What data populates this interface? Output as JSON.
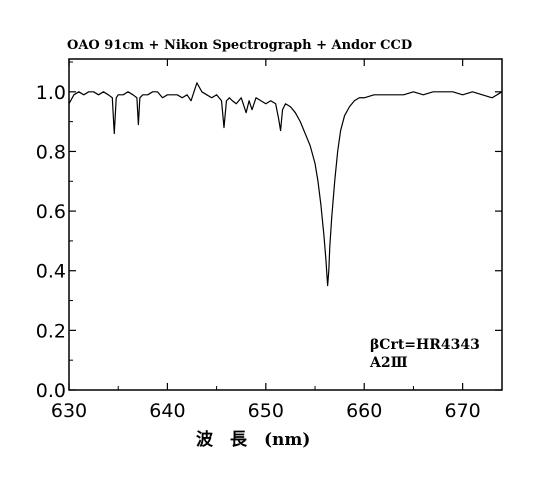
{
  "chart_data": {
    "type": "line",
    "title": "OAO 91cm + Nikon Spectrograph + Andor CCD",
    "xlabel": "波　長　(nm)",
    "ylabel": "",
    "xlim": [
      630,
      674
    ],
    "ylim": [
      0.0,
      1.1
    ],
    "xticks": [
      630,
      640,
      650,
      660,
      670
    ],
    "xtick_labels": [
      "630",
      "640",
      "650",
      "660",
      "670"
    ],
    "yticks": [
      0.0,
      0.2,
      0.4,
      0.6,
      0.8,
      1.0
    ],
    "ytick_labels": [
      "0.0",
      "0.2",
      "0.4",
      "0.6",
      "0.8",
      "1.0"
    ],
    "grid": false,
    "annotations": [
      "βCrt=HR4343",
      "A2Ⅲ"
    ],
    "series": [
      {
        "color": "#000000",
        "x": [
          630.0,
          630.5,
          631.0,
          631.5,
          632.0,
          632.5,
          633.0,
          633.5,
          634.0,
          634.4,
          634.6,
          634.8,
          635.0,
          635.5,
          636.0,
          636.5,
          636.9,
          637.05,
          637.2,
          637.5,
          638.0,
          638.5,
          639.0,
          639.5,
          640.0,
          640.5,
          641.0,
          641.5,
          642.0,
          642.4,
          642.7,
          643.0,
          643.5,
          644.0,
          644.5,
          645.0,
          645.5,
          645.75,
          646.0,
          646.3,
          646.6,
          647.0,
          647.5,
          648.0,
          648.3,
          648.6,
          649.0,
          649.5,
          650.0,
          650.5,
          651.0,
          651.3,
          651.5,
          651.7,
          652.0,
          652.5,
          653.0,
          653.5,
          654.0,
          654.5,
          655.0,
          655.3,
          655.6,
          655.9,
          656.1,
          656.2,
          656.28,
          656.4,
          656.5,
          656.7,
          657.0,
          657.3,
          657.6,
          658.0,
          658.5,
          659.0,
          659.5,
          660.0,
          661.0,
          662.0,
          663.0,
          664.0,
          665.0,
          666.0,
          667.0,
          668.0,
          669.0,
          670.0,
          671.0,
          672.0,
          673.0,
          674.0
        ],
        "y": [
          0.96,
          0.99,
          1.0,
          0.99,
          1.0,
          1.0,
          0.99,
          1.0,
          0.99,
          0.98,
          0.86,
          0.98,
          0.99,
          0.99,
          1.0,
          0.99,
          0.98,
          0.89,
          0.98,
          0.99,
          0.99,
          1.0,
          1.0,
          0.98,
          0.99,
          0.99,
          0.99,
          0.98,
          0.99,
          0.97,
          1.0,
          1.03,
          1.0,
          0.99,
          0.98,
          0.99,
          0.97,
          0.88,
          0.97,
          0.98,
          0.97,
          0.96,
          0.98,
          0.93,
          0.97,
          0.94,
          0.98,
          0.97,
          0.96,
          0.97,
          0.96,
          0.91,
          0.87,
          0.94,
          0.96,
          0.95,
          0.93,
          0.9,
          0.86,
          0.82,
          0.76,
          0.7,
          0.62,
          0.52,
          0.44,
          0.39,
          0.35,
          0.4,
          0.48,
          0.58,
          0.7,
          0.8,
          0.87,
          0.92,
          0.95,
          0.97,
          0.98,
          0.98,
          0.99,
          0.99,
          0.99,
          0.99,
          1.0,
          0.99,
          1.0,
          1.0,
          1.0,
          0.99,
          1.0,
          0.99,
          0.98,
          1.0
        ]
      }
    ]
  }
}
